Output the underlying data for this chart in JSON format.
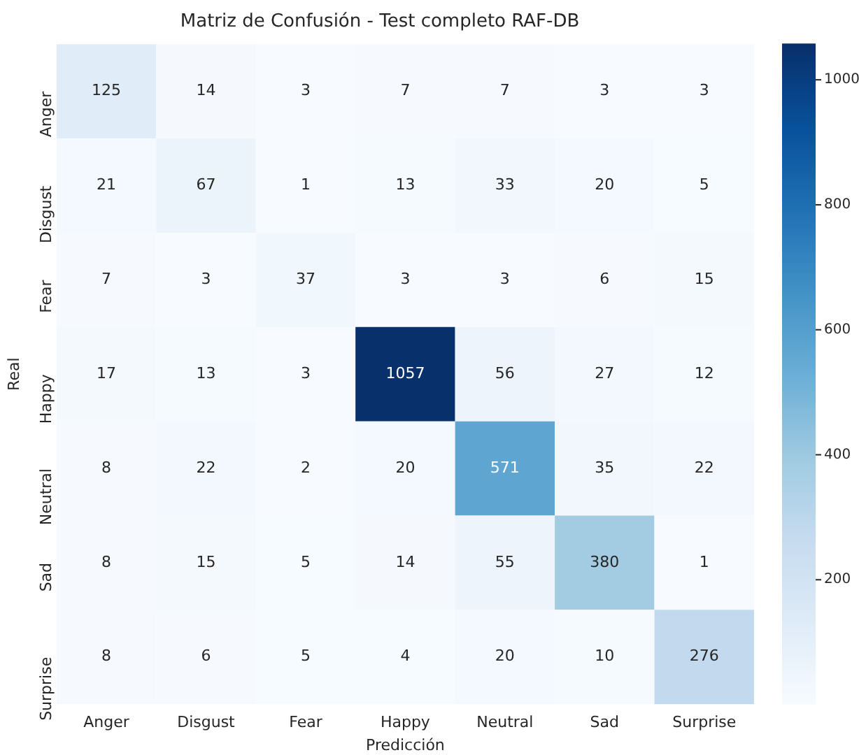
{
  "chart_data": {
    "type": "heatmap",
    "title": "Matriz de Confusión - Test completo RAF-DB",
    "xlabel": "Predicción",
    "ylabel": "Real",
    "categories": [
      "Anger",
      "Disgust",
      "Fear",
      "Happy",
      "Neutral",
      "Sad",
      "Surprise"
    ],
    "y_categories": [
      "Anger",
      "Disgust",
      "Fear",
      "Happy",
      "Neutral",
      "Sad",
      "Surprise"
    ],
    "cells": [
      [
        125,
        14,
        3,
        7,
        7,
        3,
        3
      ],
      [
        21,
        67,
        1,
        13,
        33,
        20,
        5
      ],
      [
        7,
        3,
        37,
        3,
        3,
        6,
        15
      ],
      [
        17,
        13,
        3,
        1057,
        56,
        27,
        12
      ],
      [
        8,
        22,
        2,
        20,
        571,
        35,
        22
      ],
      [
        8,
        15,
        5,
        14,
        55,
        380,
        1
      ],
      [
        8,
        6,
        5,
        4,
        20,
        10,
        276
      ]
    ],
    "data_labels": true,
    "clim": [
      1,
      1057
    ],
    "cticks": [
      200,
      400,
      600,
      800,
      1000
    ]
  }
}
